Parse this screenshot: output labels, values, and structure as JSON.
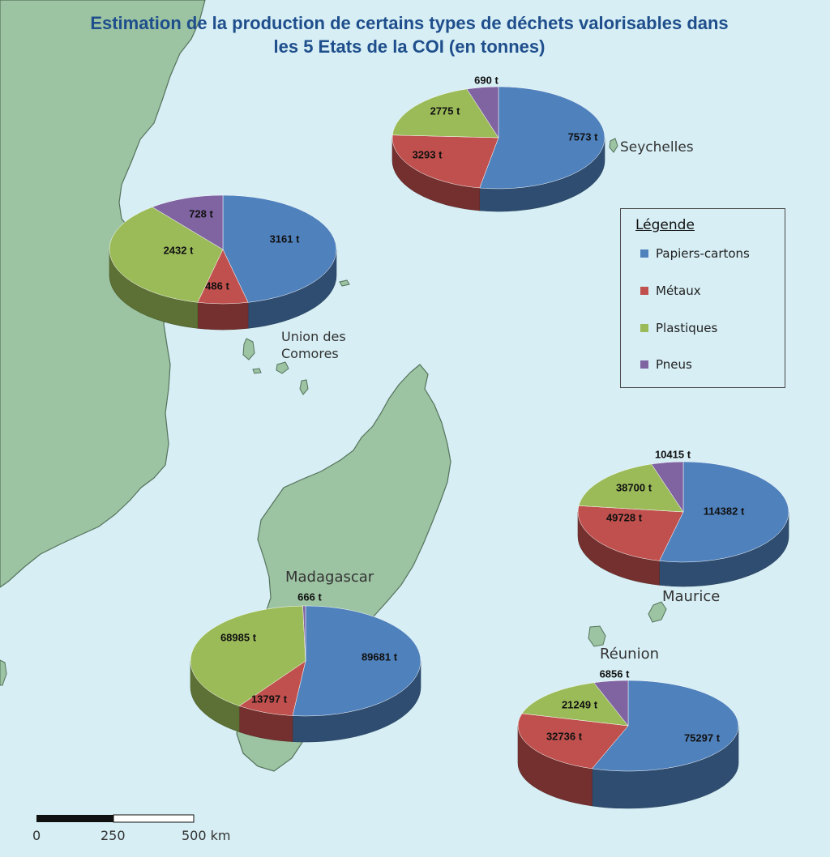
{
  "map": {
    "title_line1": "Estimation de la production de certains types de déchets valorisables dans",
    "title_line2": "les 5 Etats de la COI (en tonnes)"
  },
  "colors": {
    "papiers": "#4f81bd",
    "metaux": "#c0504d",
    "plastiques": "#9bbb59",
    "pneus": "#8064a2",
    "sea": "#d6eef4",
    "land": "#9cc3a2"
  },
  "legend": {
    "title": "Légende",
    "items": [
      {
        "label": "Papiers-cartons",
        "color": "#4f81bd"
      },
      {
        "label": "Métaux",
        "color": "#c0504d"
      },
      {
        "label": "Plastiques",
        "color": "#9bbb59"
      },
      {
        "label": "Pneus",
        "color": "#8064a2"
      }
    ]
  },
  "places": {
    "seychelles": "Seychelles",
    "comores_line1": "Union des",
    "comores_line2": "Comores",
    "madagascar": "Madagascar",
    "maurice": "Maurice",
    "reunion": "Réunion"
  },
  "scale": {
    "ticks": [
      "0",
      "250",
      "500 km"
    ]
  },
  "chart_data": [
    {
      "type": "pie",
      "territory": "Seychelles",
      "categories": [
        "Papiers-cartons",
        "Métaux",
        "Plastiques",
        "Pneus"
      ],
      "values": [
        7573,
        3293,
        2775,
        690
      ],
      "labels": [
        "7573 t",
        "3293 t",
        "2775 t",
        "690 t"
      ]
    },
    {
      "type": "pie",
      "territory": "Union des Comores",
      "categories": [
        "Papiers-cartons",
        "Métaux",
        "Plastiques",
        "Pneus"
      ],
      "values": [
        3161,
        486,
        2432,
        728
      ],
      "labels": [
        "3161 t",
        "486 t",
        "2432 t",
        "728 t"
      ]
    },
    {
      "type": "pie",
      "territory": "Madagascar",
      "categories": [
        "Papiers-cartons",
        "Métaux",
        "Plastiques",
        "Pneus"
      ],
      "values": [
        89681,
        13797,
        68985,
        666
      ],
      "labels": [
        "89681 t",
        "13797 t",
        "68985 t",
        "666 t"
      ]
    },
    {
      "type": "pie",
      "territory": "Maurice",
      "categories": [
        "Papiers-cartons",
        "Métaux",
        "Plastiques",
        "Pneus"
      ],
      "values": [
        114382,
        49728,
        38700,
        10415
      ],
      "labels": [
        "114382 t",
        "49728 t",
        "38700 t",
        "10415 t"
      ]
    },
    {
      "type": "pie",
      "territory": "Réunion",
      "categories": [
        "Papiers-cartons",
        "Métaux",
        "Plastiques",
        "Pneus"
      ],
      "values": [
        75297,
        32736,
        21249,
        6856
      ],
      "labels": [
        "75297 t",
        "32736 t",
        "21249 t",
        "6856 t"
      ]
    }
  ]
}
